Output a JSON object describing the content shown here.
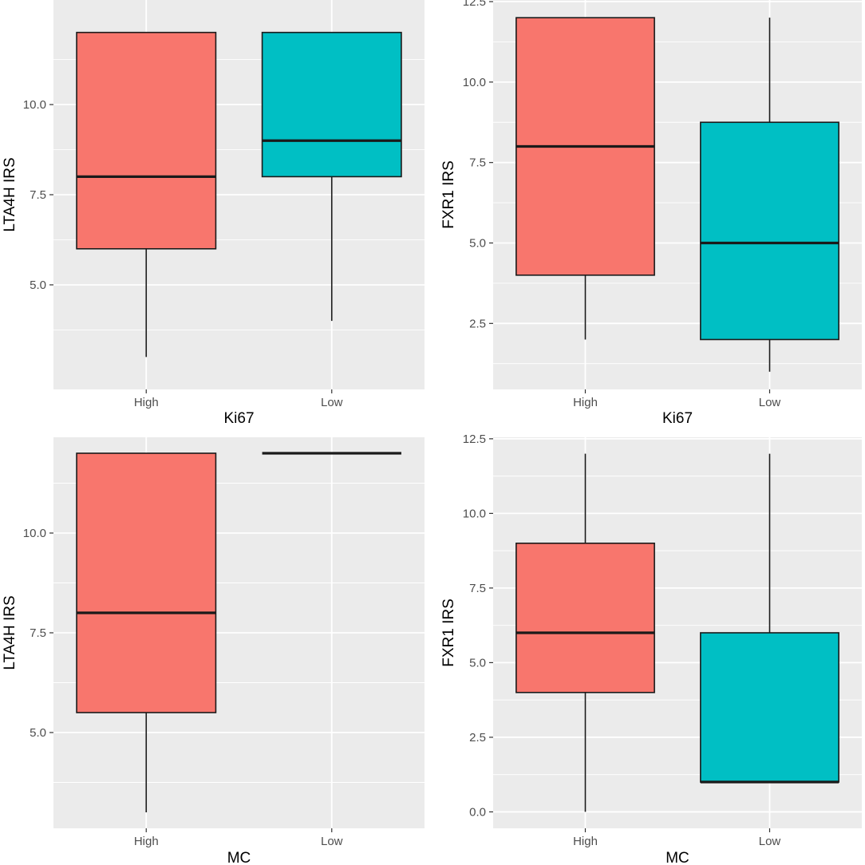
{
  "figure": {
    "background": "#ffffff",
    "panel_background": "#ebebeb",
    "grid_color": "#ffffff",
    "box_outline": "#1a1a1a"
  },
  "chart_data": [
    {
      "type": "boxplot",
      "xlabel": "Ki67",
      "ylabel": "LTA4H IRS",
      "categories": [
        "High",
        "Low"
      ],
      "ylim": [
        2.1,
        12.9
      ],
      "yticks": [
        5.0,
        7.5,
        10.0
      ],
      "ytick_labels": [
        "5.0",
        "7.5",
        "10.0"
      ],
      "boxes": [
        {
          "category": "High",
          "lower_whisker": 3,
          "q1": 6,
          "median": 8,
          "q3": 12,
          "upper_whisker": 12,
          "fill": "#f8766d"
        },
        {
          "category": "Low",
          "lower_whisker": 4,
          "q1": 8,
          "median": 9,
          "q3": 12,
          "upper_whisker": 12,
          "fill": "#00bfc4"
        }
      ]
    },
    {
      "type": "boxplot",
      "xlabel": "Ki67",
      "ylabel": "FXR1 IRS",
      "categories": [
        "High",
        "Low"
      ],
      "ylim": [
        0.45,
        12.55
      ],
      "yticks": [
        2.5,
        5.0,
        7.5,
        10.0,
        12.5
      ],
      "ytick_labels": [
        "2.5",
        "5.0",
        "7.5",
        "10.0",
        "12.5"
      ],
      "boxes": [
        {
          "category": "High",
          "lower_whisker": 2,
          "q1": 4,
          "median": 8,
          "q3": 12,
          "upper_whisker": 12,
          "fill": "#f8766d"
        },
        {
          "category": "Low",
          "lower_whisker": 1,
          "q1": 2,
          "median": 5,
          "q3": 8.75,
          "upper_whisker": 12,
          "fill": "#00bfc4"
        }
      ]
    },
    {
      "type": "boxplot",
      "xlabel": "MC",
      "ylabel": "LTA4H IRS",
      "categories": [
        "High",
        "Low"
      ],
      "ylim": [
        2.6,
        12.4
      ],
      "yticks": [
        5.0,
        7.5,
        10.0
      ],
      "ytick_labels": [
        "5.0",
        "7.5",
        "10.0"
      ],
      "boxes": [
        {
          "category": "High",
          "lower_whisker": 3,
          "q1": 5.5,
          "median": 8,
          "q3": 12,
          "upper_whisker": 12,
          "fill": "#f8766d"
        },
        {
          "category": "Low",
          "lower_whisker": 12,
          "q1": 12,
          "median": 12,
          "q3": 12,
          "upper_whisker": 12,
          "fill": "#00bfc4"
        }
      ]
    },
    {
      "type": "boxplot",
      "xlabel": "MC",
      "ylabel": "FXR1 IRS",
      "categories": [
        "High",
        "Low"
      ],
      "ylim": [
        -0.55,
        12.55
      ],
      "yticks": [
        0.0,
        2.5,
        5.0,
        7.5,
        10.0,
        12.5
      ],
      "ytick_labels": [
        "0.0",
        "2.5",
        "5.0",
        "7.5",
        "10.0",
        "12.5"
      ],
      "boxes": [
        {
          "category": "High",
          "lower_whisker": 0,
          "q1": 4,
          "median": 6,
          "q3": 9,
          "upper_whisker": 12,
          "fill": "#f8766d"
        },
        {
          "category": "Low",
          "lower_whisker": 1,
          "q1": 1,
          "median": 1,
          "q3": 6,
          "upper_whisker": 12,
          "fill": "#00bfc4"
        }
      ]
    }
  ]
}
